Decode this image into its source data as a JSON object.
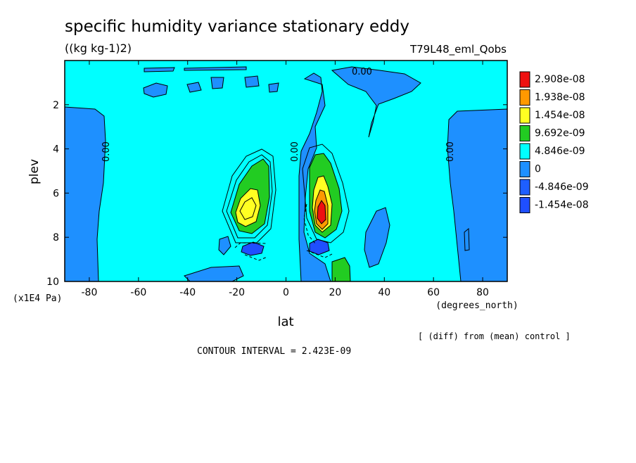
{
  "chart_data": {
    "type": "heatmap",
    "title": "specific humidity variance stationary eddy",
    "units": "((kg kg-1)2)",
    "run_label": "T79L48_eml_Qobs",
    "xlabel": "lat",
    "x_units": "(degrees_north)",
    "ylabel": "plev",
    "y_units": "(x1E4 Pa)",
    "xlim": [
      -90,
      90
    ],
    "ylim": [
      10,
      0
    ],
    "x_ticks": [
      "-80",
      "-60",
      "-40",
      "-20",
      "0",
      "20",
      "40",
      "60",
      "80"
    ],
    "y_ticks": [
      "2",
      "4",
      "6",
      "8",
      "10"
    ],
    "contour_interval": "CONTOUR INTERVAL = 2.423E-09",
    "diff_note": "[ (diff) from (mean) control ]",
    "contour_labels": [
      "0.00",
      "0.00",
      "0.00",
      "0.00"
    ],
    "legend": [
      {
        "label": "2.908e-08",
        "color": "#ee1111"
      },
      {
        "label": "1.938e-08",
        "color": "#ff9900"
      },
      {
        "label": "1.454e-08",
        "color": "#ffff22"
      },
      {
        "label": "9.692e-09",
        "color": "#22cc22"
      },
      {
        "label": "4.846e-09",
        "color": "#00ffff"
      },
      {
        "label": "0",
        "color": "#1e90ff"
      },
      {
        "label": "-4.846e-09",
        "color": "#1e5fff"
      },
      {
        "label": "-1.454e-08",
        "color": ""
      }
    ],
    "colors": {
      "background_field": "#00ffff",
      "negative": "#1e90ff",
      "strong_negative": "#1f4fff",
      "green": "#22cc22",
      "yellow": "#ffff22",
      "orange": "#ff9900",
      "red": "#ee1111"
    }
  }
}
